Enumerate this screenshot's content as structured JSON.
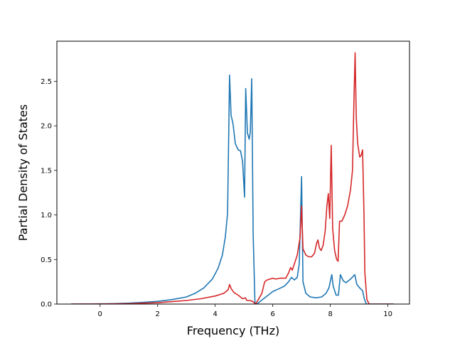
{
  "chart_data": {
    "type": "line",
    "title": "",
    "xlabel": "Frequency (THz)",
    "ylabel": "Partial Density of States",
    "xlim": [
      -1.5,
      10.75
    ],
    "ylim": [
      0,
      2.95
    ],
    "xticks": [
      0,
      2,
      4,
      6,
      8,
      10
    ],
    "xtick_labels": [
      "0",
      "2",
      "4",
      "6",
      "8",
      "10"
    ],
    "yticks": [
      0.0,
      0.5,
      1.0,
      1.5,
      2.0,
      2.5
    ],
    "ytick_labels": [
      "0.0",
      "0.5",
      "1.0",
      "1.5",
      "2.0",
      "2.5"
    ],
    "grid": false,
    "legend": "none",
    "series": [
      {
        "color": "#1f77b4",
        "points": [
          [
            -1.0,
            0.0
          ],
          [
            0.0,
            0.002
          ],
          [
            0.5,
            0.005
          ],
          [
            1.0,
            0.01
          ],
          [
            1.5,
            0.02
          ],
          [
            2.0,
            0.03
          ],
          [
            2.5,
            0.05
          ],
          [
            3.0,
            0.08
          ],
          [
            3.3,
            0.12
          ],
          [
            3.6,
            0.18
          ],
          [
            3.9,
            0.28
          ],
          [
            4.1,
            0.4
          ],
          [
            4.25,
            0.55
          ],
          [
            4.35,
            0.75
          ],
          [
            4.43,
            1.02
          ],
          [
            4.5,
            2.57
          ],
          [
            4.55,
            2.12
          ],
          [
            4.62,
            2.02
          ],
          [
            4.7,
            1.8
          ],
          [
            4.8,
            1.73
          ],
          [
            4.88,
            1.72
          ],
          [
            4.95,
            1.6
          ],
          [
            5.02,
            1.2
          ],
          [
            5.06,
            2.42
          ],
          [
            5.12,
            1.92
          ],
          [
            5.18,
            1.85
          ],
          [
            5.22,
            1.93
          ],
          [
            5.27,
            2.53
          ],
          [
            5.32,
            0.78
          ],
          [
            5.38,
            0.02
          ],
          [
            5.45,
            0.0
          ],
          [
            5.6,
            0.04
          ],
          [
            5.8,
            0.09
          ],
          [
            6.0,
            0.14
          ],
          [
            6.2,
            0.17
          ],
          [
            6.4,
            0.2
          ],
          [
            6.55,
            0.25
          ],
          [
            6.65,
            0.3
          ],
          [
            6.75,
            0.27
          ],
          [
            6.85,
            0.3
          ],
          [
            6.92,
            0.45
          ],
          [
            7.0,
            1.43
          ],
          [
            7.05,
            0.25
          ],
          [
            7.15,
            0.12
          ],
          [
            7.3,
            0.08
          ],
          [
            7.5,
            0.07
          ],
          [
            7.7,
            0.08
          ],
          [
            7.85,
            0.12
          ],
          [
            7.95,
            0.18
          ],
          [
            8.05,
            0.33
          ],
          [
            8.1,
            0.2
          ],
          [
            8.2,
            0.1
          ],
          [
            8.28,
            0.1
          ],
          [
            8.35,
            0.33
          ],
          [
            8.45,
            0.26
          ],
          [
            8.55,
            0.24
          ],
          [
            8.7,
            0.28
          ],
          [
            8.85,
            0.33
          ],
          [
            8.92,
            0.22
          ],
          [
            9.05,
            0.17
          ],
          [
            9.12,
            0.15
          ],
          [
            9.18,
            0.06
          ],
          [
            9.25,
            0.0
          ],
          [
            10.2,
            0.0
          ]
        ]
      },
      {
        "color": "#d62728",
        "points": [
          [
            -1.0,
            0.0
          ],
          [
            0.0,
            0.001
          ],
          [
            1.0,
            0.005
          ],
          [
            2.0,
            0.015
          ],
          [
            3.0,
            0.04
          ],
          [
            3.5,
            0.06
          ],
          [
            4.0,
            0.09
          ],
          [
            4.3,
            0.12
          ],
          [
            4.45,
            0.16
          ],
          [
            4.5,
            0.22
          ],
          [
            4.56,
            0.17
          ],
          [
            4.65,
            0.13
          ],
          [
            4.8,
            0.1
          ],
          [
            4.95,
            0.06
          ],
          [
            5.05,
            0.07
          ],
          [
            5.1,
            0.04
          ],
          [
            5.2,
            0.04
          ],
          [
            5.3,
            0.03
          ],
          [
            5.4,
            0.0
          ],
          [
            5.5,
            0.05
          ],
          [
            5.62,
            0.12
          ],
          [
            5.72,
            0.25
          ],
          [
            5.8,
            0.27
          ],
          [
            5.9,
            0.28
          ],
          [
            6.0,
            0.29
          ],
          [
            6.1,
            0.28
          ],
          [
            6.25,
            0.29
          ],
          [
            6.45,
            0.29
          ],
          [
            6.55,
            0.35
          ],
          [
            6.62,
            0.41
          ],
          [
            6.68,
            0.38
          ],
          [
            6.75,
            0.45
          ],
          [
            6.85,
            0.55
          ],
          [
            6.95,
            0.75
          ],
          [
            7.0,
            1.1
          ],
          [
            7.05,
            0.62
          ],
          [
            7.15,
            0.55
          ],
          [
            7.25,
            0.53
          ],
          [
            7.35,
            0.53
          ],
          [
            7.45,
            0.57
          ],
          [
            7.52,
            0.68
          ],
          [
            7.57,
            0.72
          ],
          [
            7.62,
            0.63
          ],
          [
            7.68,
            0.6
          ],
          [
            7.75,
            0.66
          ],
          [
            7.82,
            0.82
          ],
          [
            7.88,
            1.1
          ],
          [
            7.93,
            1.24
          ],
          [
            7.98,
            0.96
          ],
          [
            8.03,
            1.78
          ],
          [
            8.08,
            0.85
          ],
          [
            8.15,
            0.6
          ],
          [
            8.22,
            0.5
          ],
          [
            8.27,
            0.48
          ],
          [
            8.32,
            0.93
          ],
          [
            8.4,
            0.93
          ],
          [
            8.5,
            1.0
          ],
          [
            8.6,
            1.1
          ],
          [
            8.7,
            1.28
          ],
          [
            8.77,
            1.5
          ],
          [
            8.82,
            2.3
          ],
          [
            8.86,
            2.82
          ],
          [
            8.9,
            2.1
          ],
          [
            8.95,
            1.8
          ],
          [
            9.02,
            1.65
          ],
          [
            9.07,
            1.67
          ],
          [
            9.12,
            1.73
          ],
          [
            9.17,
            1.0
          ],
          [
            9.2,
            0.35
          ],
          [
            9.27,
            0.05
          ],
          [
            9.35,
            0.0
          ],
          [
            10.2,
            0.0
          ]
        ]
      }
    ]
  }
}
